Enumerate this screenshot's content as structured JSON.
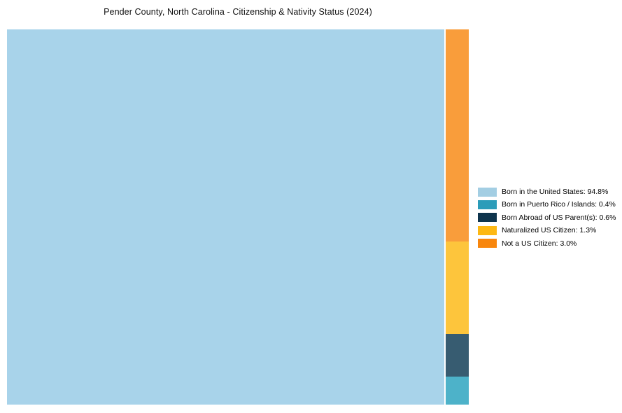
{
  "chart_data": {
    "type": "treemap",
    "title": "Pender County, North Carolina - Citizenship & Nativity Status (2024)",
    "legend_position": "right",
    "background_color": "#ffffff",
    "categories": [
      "Born in the United States",
      "Born in Puerto Rico / Islands",
      "Born Abroad of US Parent(s)",
      "Naturalized US Citizen",
      "Not a US Citizen"
    ],
    "values": [
      94.8,
      0.4,
      0.6,
      1.3,
      3.0
    ],
    "items": [
      {
        "label": "Born in the United States",
        "value": 94.8,
        "legend_label": "Born in the United States: 94.8%",
        "tile_color": "#a8d3ea",
        "legend_color": "#a3cee3"
      },
      {
        "label": "Born in Puerto Rico / Islands",
        "value": 0.4,
        "legend_label": "Born in Puerto Rico / Islands: 0.4%",
        "tile_color": "#4db2c9",
        "legend_color": "#2b9cb9"
      },
      {
        "label": "Born Abroad of US Parent(s)",
        "value": 0.6,
        "legend_label": "Born Abroad of US Parent(s): 0.6%",
        "tile_color": "#375c71",
        "legend_color": "#0e344d"
      },
      {
        "label": "Naturalized US Citizen",
        "value": 1.3,
        "legend_label": "Naturalized US Citizen: 1.3%",
        "tile_color": "#fdc53c",
        "legend_color": "#fdb813"
      },
      {
        "label": "Not a US Citizen",
        "value": 3.0,
        "legend_label": "Not a US Citizen: 3.0%",
        "tile_color": "#f99d3b",
        "legend_color": "#f8860d"
      }
    ],
    "column_order_top_to_bottom": [
      "Not a US Citizen",
      "Naturalized US Citizen",
      "Born Abroad of US Parent(s)",
      "Born in Puerto Rico / Islands"
    ]
  }
}
